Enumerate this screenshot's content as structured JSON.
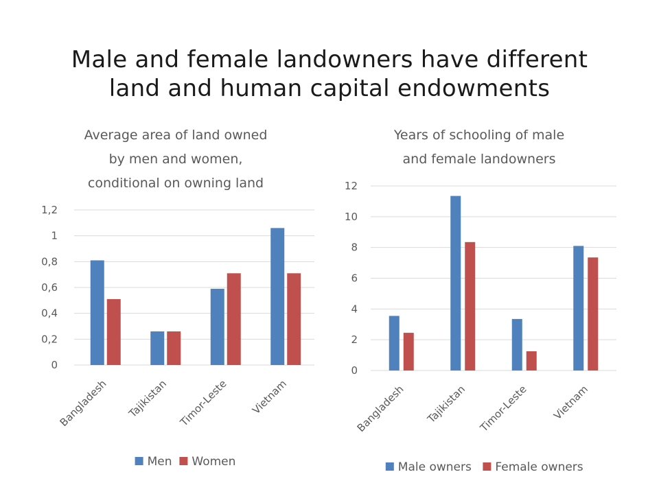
{
  "slide": {
    "title_line1": "Male and female landowners have different",
    "title_line2": "land and human capital endowments"
  },
  "chart_data": [
    {
      "type": "bar",
      "title": "Average area of land owned by men and women, conditional on owning land",
      "title_lines": [
        "Average area of land owned",
        "by men and women,",
        "conditional on owning land"
      ],
      "categories": [
        "Bangladesh",
        "Tajikistan",
        "Timor-Leste",
        "Vietnam"
      ],
      "series": [
        {
          "name": "Men",
          "values": [
            0.81,
            0.26,
            0.59,
            1.06
          ],
          "color": "#4f81bd"
        },
        {
          "name": "Women",
          "values": [
            0.51,
            0.26,
            0.71,
            0.71
          ],
          "color": "#c0504d"
        }
      ],
      "ylim": [
        0,
        1.2
      ],
      "yticks": [
        "0",
        "0,2",
        "0,4",
        "0,6",
        "0,8",
        "1",
        "1,2"
      ],
      "xlabel": "",
      "ylabel": "",
      "grid": true,
      "legend": "bottom"
    },
    {
      "type": "bar",
      "title": "Years of schooling of male and female landowners",
      "title_lines": [
        "Years of schooling of male",
        "and female landowners"
      ],
      "categories": [
        "Bangladesh",
        "Tajikistan",
        "Timor-Leste",
        "Vietnam"
      ],
      "series": [
        {
          "name": "Male owners",
          "values": [
            3.55,
            11.35,
            3.35,
            8.1
          ],
          "color": "#4f81bd"
        },
        {
          "name": "Female owners",
          "values": [
            2.45,
            8.35,
            1.25,
            7.35
          ],
          "color": "#c0504d"
        }
      ],
      "ylim": [
        0,
        12
      ],
      "yticks": [
        "0",
        "2",
        "4",
        "6",
        "8",
        "10",
        "12"
      ],
      "xlabel": "",
      "ylabel": "",
      "grid": true,
      "legend": "bottom"
    }
  ]
}
